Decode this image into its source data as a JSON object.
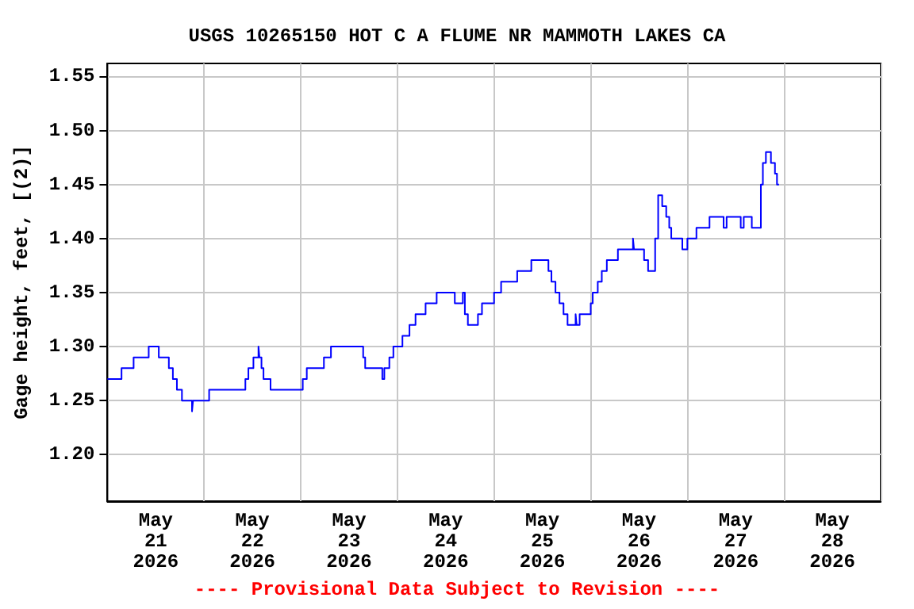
{
  "chart_data": {
    "type": "step",
    "title": "USGS 10265150 HOT C A FLUME NR MAMMOTH LAKES CA",
    "ylabel": "Gage height, feet, [(2)]",
    "annotations": [
      "---- Provisional Data Subject to Revision ----"
    ],
    "x": [
      "2026-05-21T00:00",
      "2026-05-21T03:30",
      "2026-05-21T06:30",
      "2026-05-21T10:15",
      "2026-05-21T12:45",
      "2026-05-21T15:15",
      "2026-05-21T16:15",
      "2026-05-21T17:15",
      "2026-05-21T18:30",
      "2026-05-21T21:00",
      "2026-05-21T21:15",
      "2026-05-22T01:15",
      "2026-05-22T10:15",
      "2026-05-22T11:00",
      "2026-05-22T12:15",
      "2026-05-22T13:30",
      "2026-05-22T13:45",
      "2026-05-22T14:15",
      "2026-05-22T14:45",
      "2026-05-22T16:30",
      "2026-05-23T00:30",
      "2026-05-23T01:30",
      "2026-05-23T05:45",
      "2026-05-23T07:30",
      "2026-05-23T15:30",
      "2026-05-23T16:00",
      "2026-05-23T20:15",
      "2026-05-23T20:45",
      "2026-05-23T22:00",
      "2026-05-23T23:00",
      "2026-05-24T01:15",
      "2026-05-24T03:00",
      "2026-05-24T04:30",
      "2026-05-24T07:00",
      "2026-05-24T09:45",
      "2026-05-24T14:15",
      "2026-05-24T16:15",
      "2026-05-24T16:45",
      "2026-05-24T17:30",
      "2026-05-24T20:00",
      "2026-05-24T21:00",
      "2026-05-25T00:00",
      "2026-05-25T01:45",
      "2026-05-25T05:45",
      "2026-05-25T09:15",
      "2026-05-25T13:30",
      "2026-05-25T14:15",
      "2026-05-25T15:15",
      "2026-05-25T16:15",
      "2026-05-25T17:15",
      "2026-05-25T18:15",
      "2026-05-25T20:15",
      "2026-05-25T20:30",
      "2026-05-25T21:15",
      "2026-05-26T00:00",
      "2026-05-26T00:30",
      "2026-05-26T01:45",
      "2026-05-26T02:45",
      "2026-05-26T04:00",
      "2026-05-26T06:45",
      "2026-05-26T10:30",
      "2026-05-26T10:45",
      "2026-05-26T13:15",
      "2026-05-26T14:15",
      "2026-05-26T16:00",
      "2026-05-26T16:45",
      "2026-05-26T17:45",
      "2026-05-26T18:45",
      "2026-05-26T19:30",
      "2026-05-26T20:00",
      "2026-05-26T22:45",
      "2026-05-27T00:00",
      "2026-05-27T02:15",
      "2026-05-27T05:30",
      "2026-05-27T09:00",
      "2026-05-27T09:45",
      "2026-05-27T13:15",
      "2026-05-27T14:00",
      "2026-05-27T16:00",
      "2026-05-27T18:15",
      "2026-05-27T18:45",
      "2026-05-27T19:30",
      "2026-05-27T20:45",
      "2026-05-27T21:45",
      "2026-05-27T22:15",
      "2026-05-27T22:45"
    ],
    "series": [
      {
        "color": "#0000ff",
        "values": [
          1.27,
          1.28,
          1.29,
          1.3,
          1.29,
          1.28,
          1.27,
          1.26,
          1.25,
          1.24,
          1.25,
          1.26,
          1.27,
          1.28,
          1.29,
          1.3,
          1.29,
          1.28,
          1.27,
          1.26,
          1.27,
          1.28,
          1.29,
          1.3,
          1.29,
          1.28,
          1.27,
          1.28,
          1.29,
          1.3,
          1.31,
          1.32,
          1.33,
          1.34,
          1.35,
          1.34,
          1.35,
          1.33,
          1.32,
          1.33,
          1.34,
          1.35,
          1.36,
          1.37,
          1.38,
          1.37,
          1.36,
          1.35,
          1.34,
          1.33,
          1.32,
          1.33,
          1.32,
          1.33,
          1.34,
          1.35,
          1.36,
          1.37,
          1.38,
          1.39,
          1.4,
          1.39,
          1.38,
          1.37,
          1.4,
          1.44,
          1.43,
          1.42,
          1.41,
          1.4,
          1.39,
          1.4,
          1.41,
          1.42,
          1.41,
          1.42,
          1.41,
          1.42,
          1.41,
          1.45,
          1.47,
          1.48,
          1.47,
          1.46,
          1.45,
          1.45
        ]
      }
    ],
    "xlim": [
      "2026-05-21T00:00",
      "2026-05-29T00:00"
    ],
    "xticks": [
      {
        "value": "2026-05-21T00:00",
        "label": null
      },
      {
        "value": "2026-05-21T12:00",
        "label": "May\n21\n2026"
      },
      {
        "value": "2026-05-22T00:00",
        "label": null
      },
      {
        "value": "2026-05-22T12:00",
        "label": "May\n22\n2026"
      },
      {
        "value": "2026-05-23T00:00",
        "label": null
      },
      {
        "value": "2026-05-23T12:00",
        "label": "May\n23\n2026"
      },
      {
        "value": "2026-05-24T00:00",
        "label": null
      },
      {
        "value": "2026-05-24T12:00",
        "label": "May\n24\n2026"
      },
      {
        "value": "2026-05-25T00:00",
        "label": null
      },
      {
        "value": "2026-05-25T12:00",
        "label": "May\n25\n2026"
      },
      {
        "value": "2026-05-26T00:00",
        "label": null
      },
      {
        "value": "2026-05-26T12:00",
        "label": "May\n26\n2026"
      },
      {
        "value": "2026-05-27T00:00",
        "label": null
      },
      {
        "value": "2026-05-27T12:00",
        "label": "May\n27\n2026"
      },
      {
        "value": "2026-05-28T00:00",
        "label": null
      },
      {
        "value": "2026-05-28T12:00",
        "label": "May\n28\n2026"
      },
      {
        "value": "2026-05-29T00:00",
        "label": null
      }
    ],
    "ylim": [
      1.157,
      1.562
    ],
    "yticks": [
      {
        "value": 1.2,
        "label": "1.20"
      },
      {
        "value": 1.25,
        "label": "1.25"
      },
      {
        "value": 1.3,
        "label": "1.30"
      },
      {
        "value": 1.35,
        "label": "1.35"
      },
      {
        "value": 1.4,
        "label": "1.40"
      },
      {
        "value": 1.45,
        "label": "1.45"
      },
      {
        "value": 1.5,
        "label": "1.50"
      },
      {
        "value": 1.55,
        "label": "1.55"
      }
    ],
    "grid": true,
    "marker": "none",
    "line_style": "solid"
  }
}
